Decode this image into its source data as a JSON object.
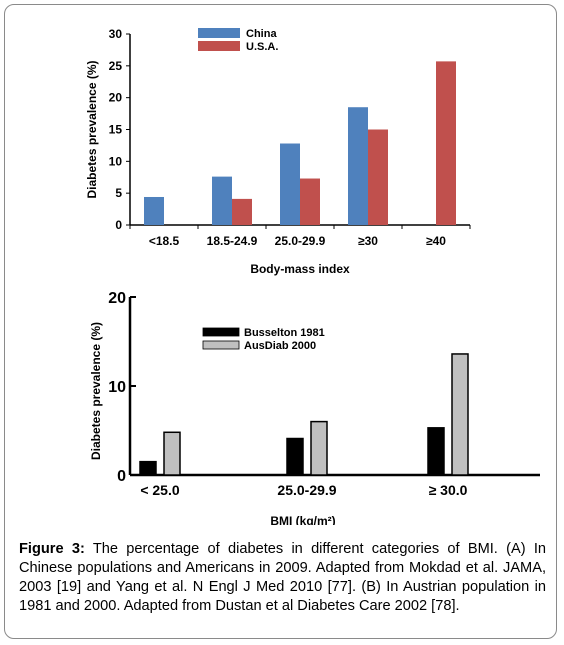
{
  "chart_data": [
    {
      "type": "bar",
      "categories": [
        "<18.5",
        "18.5-24.9",
        "25.0-29.9",
        "≥30",
        "≥40"
      ],
      "series": [
        {
          "name": "China",
          "values": [
            4.4,
            7.6,
            12.8,
            18.5,
            null
          ]
        },
        {
          "name": "U.S.A.",
          "values": [
            null,
            4.1,
            7.3,
            15.0,
            25.7
          ]
        }
      ],
      "xlabel": "Body-mass index",
      "ylabel": "Diabetes prevalence (%)",
      "ylim": [
        0,
        30
      ],
      "yticks": [
        "0",
        "5",
        "10",
        "15",
        "20",
        "25",
        "30"
      ],
      "legend": "top-left",
      "colors": {
        "China": "#4f81bd",
        "U.S.A.": "#c0504d"
      }
    },
    {
      "type": "bar",
      "categories": [
        "< 25.0",
        "25.0-29.9",
        "≥  30.0"
      ],
      "series": [
        {
          "name": "Busselton 1981",
          "values": [
            1.5,
            4.1,
            5.3
          ]
        },
        {
          "name": "AusDiab 2000",
          "values": [
            4.8,
            6.0,
            13.6
          ]
        }
      ],
      "xlabel": "BMI (kg/m²)",
      "ylabel": "Diabetes prevalence (%)",
      "ylim": [
        0,
        20
      ],
      "yticks": [
        "0",
        "10",
        "20"
      ],
      "legend": "top-center",
      "colors": {
        "Busselton 1981": "#000000",
        "AusDiab 2000": "#c0c0c0"
      }
    }
  ],
  "caption": {
    "label": "Figure 3:",
    "text": " The percentage of diabetes in different categories of BMI. (A) In Chinese populations and Americans in 2009. Adapted from Mokdad et al. JAMA, 2003 [19] and Yang et al. N Engl J Med 2010 [77]. (B) In Austrian population in 1981 and 2000. Adapted from Dustan et al Diabetes Care 2002 [78]."
  }
}
